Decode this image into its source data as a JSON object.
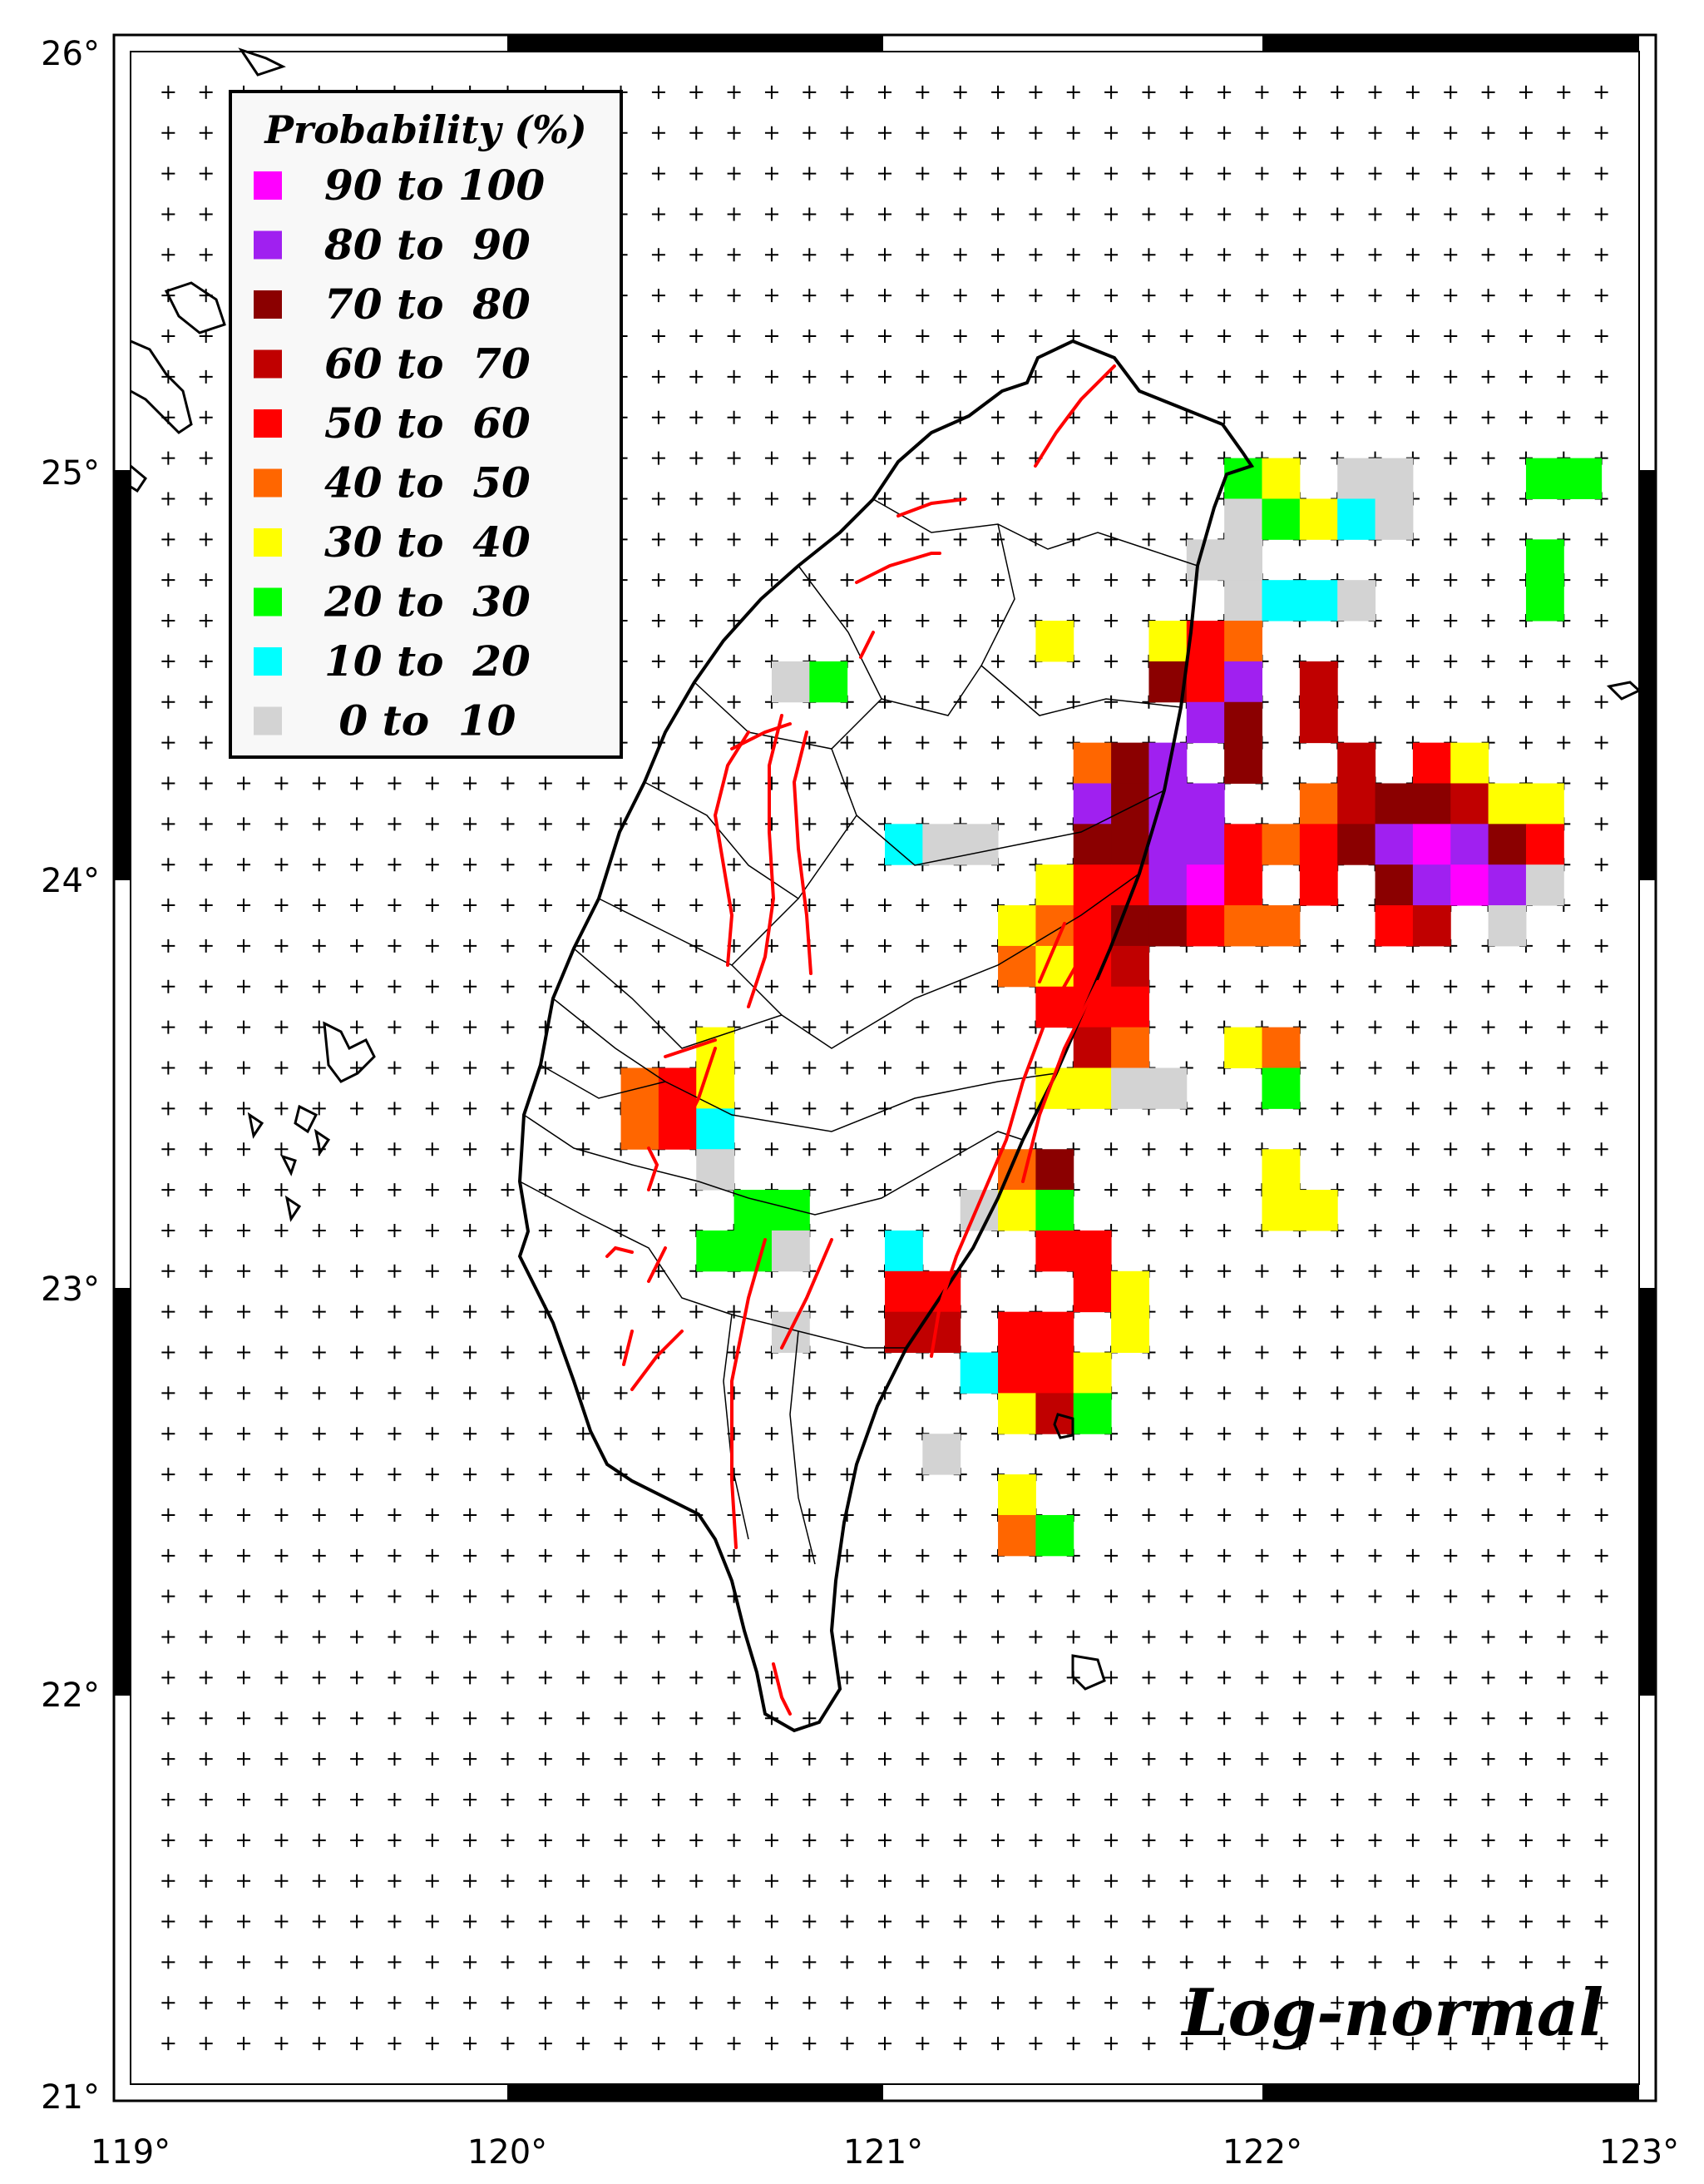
{
  "map": {
    "model_label": "Log-normal",
    "lon_labels": [
      "119°",
      "120°",
      "121°",
      "122°",
      "123°"
    ],
    "lat_labels": [
      "21°",
      "22°",
      "23°",
      "24°",
      "25°",
      "26°"
    ],
    "extent": {
      "lon_min": 119.0,
      "lon_max": 123.0,
      "lat_min": 21.0,
      "lat_max": 26.0
    },
    "grid_step_deg": 0.1
  },
  "legend": {
    "title": "Probability (%)",
    "entries": [
      {
        "label": "90 to 100",
        "color": "#ff00ff"
      },
      {
        "label": "80 to  90",
        "color": "#a020f0"
      },
      {
        "label": "70 to  80",
        "color": "#8b0000"
      },
      {
        "label": "60 to  70",
        "color": "#c00000"
      },
      {
        "label": "50 to  60",
        "color": "#ff0000"
      },
      {
        "label": "40 to  50",
        "color": "#ff6600"
      },
      {
        "label": "30 to  40",
        "color": "#ffff00"
      },
      {
        "label": "20 to  30",
        "color": "#00ff00"
      },
      {
        "label": "10 to  20",
        "color": "#00ffff"
      },
      {
        "label": " 0 to  10",
        "color": "#d3d3d3"
      }
    ]
  },
  "colors": {
    "coastline": "#000000",
    "faults": "#ff0000",
    "county_borders": "#000000",
    "grid_marks": "#000000"
  },
  "cells": [
    {
      "lon": 121.9,
      "lat": 24.9,
      "class": 7
    },
    {
      "lon": 122.0,
      "lat": 24.9,
      "class": 6
    },
    {
      "lon": 122.2,
      "lat": 24.9,
      "class": 9
    },
    {
      "lon": 122.3,
      "lat": 24.9,
      "class": 9
    },
    {
      "lon": 122.7,
      "lat": 24.9,
      "class": 7
    },
    {
      "lon": 122.8,
      "lat": 24.9,
      "class": 7
    },
    {
      "lon": 121.9,
      "lat": 24.8,
      "class": 9
    },
    {
      "lon": 122.0,
      "lat": 24.8,
      "class": 7
    },
    {
      "lon": 122.1,
      "lat": 24.8,
      "class": 6
    },
    {
      "lon": 122.2,
      "lat": 24.8,
      "class": 8
    },
    {
      "lon": 122.3,
      "lat": 24.8,
      "class": 9
    },
    {
      "lon": 121.8,
      "lat": 24.7,
      "class": 9
    },
    {
      "lon": 121.9,
      "lat": 24.7,
      "class": 9
    },
    {
      "lon": 122.7,
      "lat": 24.7,
      "class": 7
    },
    {
      "lon": 121.9,
      "lat": 24.6,
      "class": 9
    },
    {
      "lon": 122.0,
      "lat": 24.6,
      "class": 8
    },
    {
      "lon": 122.1,
      "lat": 24.6,
      "class": 8
    },
    {
      "lon": 122.2,
      "lat": 24.6,
      "class": 9
    },
    {
      "lon": 122.7,
      "lat": 24.6,
      "class": 7
    },
    {
      "lon": 121.4,
      "lat": 24.5,
      "class": 6
    },
    {
      "lon": 121.7,
      "lat": 24.5,
      "class": 6
    },
    {
      "lon": 121.8,
      "lat": 24.5,
      "class": 4
    },
    {
      "lon": 121.9,
      "lat": 24.5,
      "class": 5
    },
    {
      "lon": 120.7,
      "lat": 24.4,
      "class": 9
    },
    {
      "lon": 120.8,
      "lat": 24.4,
      "class": 7
    },
    {
      "lon": 121.7,
      "lat": 24.4,
      "class": 2
    },
    {
      "lon": 121.8,
      "lat": 24.4,
      "class": 4
    },
    {
      "lon": 121.9,
      "lat": 24.4,
      "class": 1
    },
    {
      "lon": 122.1,
      "lat": 24.4,
      "class": 3
    },
    {
      "lon": 121.8,
      "lat": 24.3,
      "class": 1
    },
    {
      "lon": 121.9,
      "lat": 24.3,
      "class": 2
    },
    {
      "lon": 122.1,
      "lat": 24.3,
      "class": 3
    },
    {
      "lon": 121.5,
      "lat": 24.2,
      "class": 5
    },
    {
      "lon": 121.6,
      "lat": 24.2,
      "class": 2
    },
    {
      "lon": 121.7,
      "lat": 24.2,
      "class": 1
    },
    {
      "lon": 121.9,
      "lat": 24.2,
      "class": 2
    },
    {
      "lon": 122.2,
      "lat": 24.2,
      "class": 3
    },
    {
      "lon": 122.4,
      "lat": 24.2,
      "class": 4
    },
    {
      "lon": 122.5,
      "lat": 24.2,
      "class": 6
    },
    {
      "lon": 121.5,
      "lat": 24.1,
      "class": 1
    },
    {
      "lon": 121.6,
      "lat": 24.1,
      "class": 2
    },
    {
      "lon": 121.7,
      "lat": 24.1,
      "class": 1
    },
    {
      "lon": 121.8,
      "lat": 24.1,
      "class": 1
    },
    {
      "lon": 122.1,
      "lat": 24.1,
      "class": 5
    },
    {
      "lon": 122.2,
      "lat": 24.1,
      "class": 3
    },
    {
      "lon": 122.3,
      "lat": 24.1,
      "class": 2
    },
    {
      "lon": 122.4,
      "lat": 24.1,
      "class": 2
    },
    {
      "lon": 122.5,
      "lat": 24.1,
      "class": 3
    },
    {
      "lon": 122.6,
      "lat": 24.1,
      "class": 6
    },
    {
      "lon": 122.7,
      "lat": 24.1,
      "class": 6
    },
    {
      "lon": 121.0,
      "lat": 24.0,
      "class": 8
    },
    {
      "lon": 121.1,
      "lat": 24.0,
      "class": 9
    },
    {
      "lon": 121.2,
      "lat": 24.0,
      "class": 9
    },
    {
      "lon": 121.5,
      "lat": 24.0,
      "class": 2
    },
    {
      "lon": 121.6,
      "lat": 24.0,
      "class": 2
    },
    {
      "lon": 121.7,
      "lat": 24.0,
      "class": 1
    },
    {
      "lon": 121.8,
      "lat": 24.0,
      "class": 1
    },
    {
      "lon": 121.9,
      "lat": 24.0,
      "class": 4
    },
    {
      "lon": 122.0,
      "lat": 24.0,
      "class": 5
    },
    {
      "lon": 122.1,
      "lat": 24.0,
      "class": 4
    },
    {
      "lon": 122.2,
      "lat": 24.0,
      "class": 2
    },
    {
      "lon": 122.3,
      "lat": 24.0,
      "class": 1
    },
    {
      "lon": 122.4,
      "lat": 24.0,
      "class": 0
    },
    {
      "lon": 122.5,
      "lat": 24.0,
      "class": 1
    },
    {
      "lon": 122.6,
      "lat": 24.0,
      "class": 2
    },
    {
      "lon": 122.7,
      "lat": 24.0,
      "class": 4
    },
    {
      "lon": 121.4,
      "lat": 23.9,
      "class": 6
    },
    {
      "lon": 121.5,
      "lat": 23.9,
      "class": 4
    },
    {
      "lon": 121.6,
      "lat": 23.9,
      "class": 4
    },
    {
      "lon": 121.7,
      "lat": 23.9,
      "class": 1
    },
    {
      "lon": 121.8,
      "lat": 23.9,
      "class": 0
    },
    {
      "lon": 121.9,
      "lat": 23.9,
      "class": 4
    },
    {
      "lon": 122.1,
      "lat": 23.9,
      "class": 4
    },
    {
      "lon": 122.3,
      "lat": 23.9,
      "class": 2
    },
    {
      "lon": 122.4,
      "lat": 23.9,
      "class": 1
    },
    {
      "lon": 122.5,
      "lat": 23.9,
      "class": 0
    },
    {
      "lon": 122.6,
      "lat": 23.9,
      "class": 1
    },
    {
      "lon": 122.7,
      "lat": 23.9,
      "class": 9
    },
    {
      "lon": 121.3,
      "lat": 23.8,
      "class": 6
    },
    {
      "lon": 121.4,
      "lat": 23.8,
      "class": 5
    },
    {
      "lon": 121.5,
      "lat": 23.8,
      "class": 4
    },
    {
      "lon": 121.6,
      "lat": 23.8,
      "class": 2
    },
    {
      "lon": 121.7,
      "lat": 23.8,
      "class": 2
    },
    {
      "lon": 121.8,
      "lat": 23.8,
      "class": 4
    },
    {
      "lon": 121.9,
      "lat": 23.8,
      "class": 5
    },
    {
      "lon": 122.0,
      "lat": 23.8,
      "class": 5
    },
    {
      "lon": 122.3,
      "lat": 23.8,
      "class": 4
    },
    {
      "lon": 122.4,
      "lat": 23.8,
      "class": 3
    },
    {
      "lon": 122.6,
      "lat": 23.8,
      "class": 9
    },
    {
      "lon": 121.3,
      "lat": 23.7,
      "class": 5
    },
    {
      "lon": 121.4,
      "lat": 23.7,
      "class": 6
    },
    {
      "lon": 121.5,
      "lat": 23.7,
      "class": 4
    },
    {
      "lon": 121.6,
      "lat": 23.7,
      "class": 3
    },
    {
      "lon": 121.4,
      "lat": 23.6,
      "class": 4
    },
    {
      "lon": 121.5,
      "lat": 23.6,
      "class": 4
    },
    {
      "lon": 121.6,
      "lat": 23.6,
      "class": 4
    },
    {
      "lon": 120.5,
      "lat": 23.5,
      "class": 6
    },
    {
      "lon": 121.5,
      "lat": 23.5,
      "class": 3
    },
    {
      "lon": 121.6,
      "lat": 23.5,
      "class": 5
    },
    {
      "lon": 121.9,
      "lat": 23.5,
      "class": 6
    },
    {
      "lon": 122.0,
      "lat": 23.5,
      "class": 5
    },
    {
      "lon": 120.3,
      "lat": 23.4,
      "class": 5
    },
    {
      "lon": 120.4,
      "lat": 23.4,
      "class": 4
    },
    {
      "lon": 120.5,
      "lat": 23.4,
      "class": 6
    },
    {
      "lon": 121.4,
      "lat": 23.4,
      "class": 6
    },
    {
      "lon": 121.5,
      "lat": 23.4,
      "class": 6
    },
    {
      "lon": 121.6,
      "lat": 23.4,
      "class": 9
    },
    {
      "lon": 121.7,
      "lat": 23.4,
      "class": 9
    },
    {
      "lon": 122.0,
      "lat": 23.4,
      "class": 7
    },
    {
      "lon": 120.3,
      "lat": 23.3,
      "class": 5
    },
    {
      "lon": 120.4,
      "lat": 23.3,
      "class": 4
    },
    {
      "lon": 120.5,
      "lat": 23.3,
      "class": 8
    },
    {
      "lon": 120.5,
      "lat": 23.2,
      "class": 9
    },
    {
      "lon": 121.3,
      "lat": 23.2,
      "class": 5
    },
    {
      "lon": 121.4,
      "lat": 23.2,
      "class": 2
    },
    {
      "lon": 122.0,
      "lat": 23.2,
      "class": 6
    },
    {
      "lon": 120.6,
      "lat": 23.1,
      "class": 7
    },
    {
      "lon": 120.7,
      "lat": 23.1,
      "class": 7
    },
    {
      "lon": 121.2,
      "lat": 23.1,
      "class": 9
    },
    {
      "lon": 121.3,
      "lat": 23.1,
      "class": 6
    },
    {
      "lon": 121.4,
      "lat": 23.1,
      "class": 7
    },
    {
      "lon": 122.0,
      "lat": 23.1,
      "class": 6
    },
    {
      "lon": 122.1,
      "lat": 23.1,
      "class": 6
    },
    {
      "lon": 120.5,
      "lat": 23.0,
      "class": 7
    },
    {
      "lon": 120.6,
      "lat": 23.0,
      "class": 7
    },
    {
      "lon": 120.7,
      "lat": 23.0,
      "class": 9
    },
    {
      "lon": 121.0,
      "lat": 23.0,
      "class": 8
    },
    {
      "lon": 121.4,
      "lat": 23.0,
      "class": 4
    },
    {
      "lon": 121.5,
      "lat": 23.0,
      "class": 4
    },
    {
      "lon": 121.0,
      "lat": 22.9,
      "class": 4
    },
    {
      "lon": 121.1,
      "lat": 22.9,
      "class": 4
    },
    {
      "lon": 121.5,
      "lat": 22.9,
      "class": 4
    },
    {
      "lon": 121.6,
      "lat": 22.9,
      "class": 6
    },
    {
      "lon": 120.7,
      "lat": 22.8,
      "class": 9
    },
    {
      "lon": 121.0,
      "lat": 22.8,
      "class": 3
    },
    {
      "lon": 121.1,
      "lat": 22.8,
      "class": 3
    },
    {
      "lon": 121.3,
      "lat": 22.8,
      "class": 4
    },
    {
      "lon": 121.4,
      "lat": 22.8,
      "class": 4
    },
    {
      "lon": 121.6,
      "lat": 22.8,
      "class": 6
    },
    {
      "lon": 121.2,
      "lat": 22.7,
      "class": 8
    },
    {
      "lon": 121.3,
      "lat": 22.7,
      "class": 4
    },
    {
      "lon": 121.4,
      "lat": 22.7,
      "class": 4
    },
    {
      "lon": 121.5,
      "lat": 22.7,
      "class": 6
    },
    {
      "lon": 121.3,
      "lat": 22.6,
      "class": 6
    },
    {
      "lon": 121.4,
      "lat": 22.6,
      "class": 3
    },
    {
      "lon": 121.5,
      "lat": 22.6,
      "class": 7
    },
    {
      "lon": 121.1,
      "lat": 22.5,
      "class": 9
    },
    {
      "lon": 121.3,
      "lat": 22.4,
      "class": 6
    },
    {
      "lon": 121.3,
      "lat": 22.3,
      "class": 5
    },
    {
      "lon": 121.4,
      "lat": 22.3,
      "class": 7
    }
  ]
}
